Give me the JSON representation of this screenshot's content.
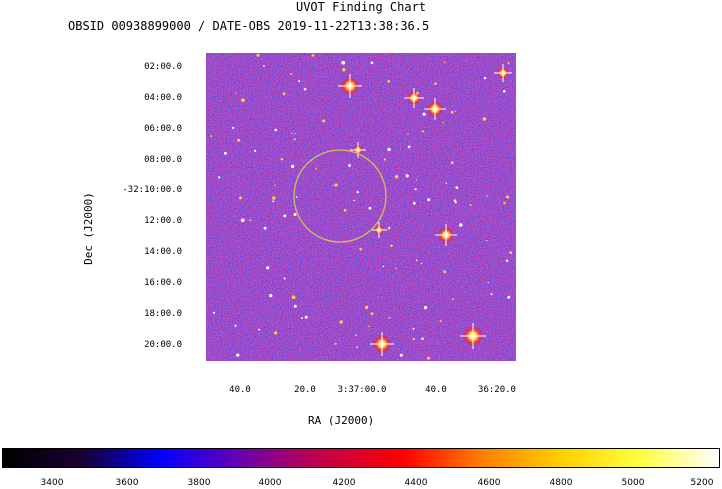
{
  "chart": {
    "title": "UVOT Finding Chart",
    "subtitle": "OBSID 00938899000 / DATE-OBS 2019-11-22T13:38:36.5",
    "ra_axis_title": "RA (J2000)",
    "dec_axis_title": "Dec (J2000)",
    "dec_ticks": [
      "02:00.0",
      "04:00.0",
      "06:00.0",
      "08:00.0",
      "-32:10:00.0",
      "12:00.0",
      "14:00.0",
      "16:00.0",
      "18:00.0",
      "20:00.0"
    ],
    "ra_ticks": [
      "40.0",
      "20.0",
      "3:37:00.0",
      "40.0",
      "36:20.0"
    ],
    "colorbar_ticks": [
      "3400",
      "3600",
      "3800",
      "4000",
      "4200",
      "4400",
      "4600",
      "4800",
      "5000",
      "5200"
    ],
    "colorbar_colors": [
      "#000000",
      "#1a0030",
      "#0000ff",
      "#6a00b0",
      "#c0004a",
      "#ff0000",
      "#ff8000",
      "#ffd000",
      "#ffff40",
      "#ffffff"
    ],
    "circle_color": "#d8c050"
  }
}
